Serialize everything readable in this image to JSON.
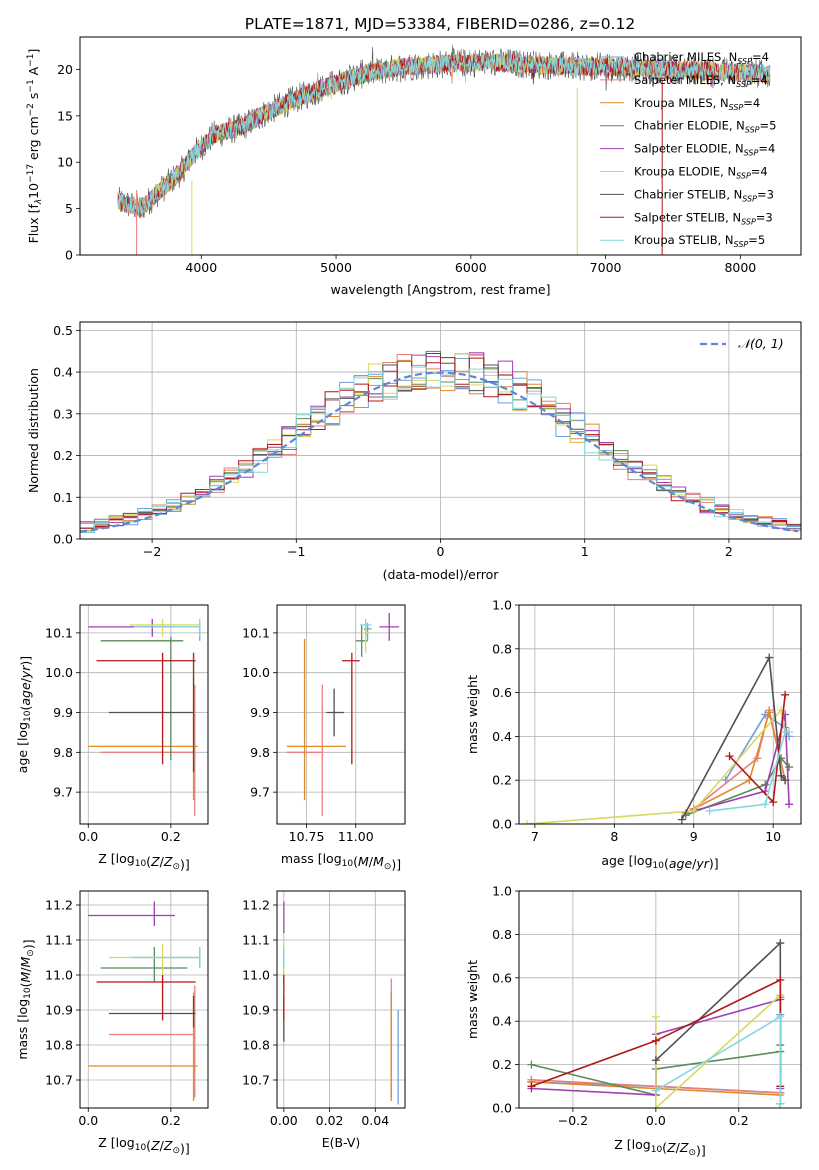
{
  "figure_title": "PLATE=1871, MJD=53384, FIBERID=0286, z=0.12",
  "model_colors": [
    "#6f9fdc",
    "#e87f7f",
    "#e08a2c",
    "#5b8a5b",
    "#a040b0",
    "#d8d860",
    "#505050",
    "#b01818",
    "#80d8e0"
  ],
  "chart_data": [
    {
      "type": "line",
      "panel": "spectrum",
      "title": "PLATE=1871, MJD=53384, FIBERID=0286, z=0.12",
      "xlabel": "wavelength [Angstrom, rest frame]",
      "ylabel_parts": [
        "Flux [f",
        "λ",
        "10",
        "−17",
        " erg cm",
        "−2",
        " s",
        "−1",
        " A",
        "−1",
        "]"
      ],
      "xlim": [
        3100,
        8450
      ],
      "ylim": [
        0,
        23.5
      ],
      "xticks": [
        4000,
        5000,
        6000,
        7000,
        8000
      ],
      "yticks": [
        0,
        5,
        10,
        15,
        20
      ],
      "grid": false,
      "legend_position": "right",
      "spectrum_x_range": [
        3380,
        8220
      ],
      "series": [
        {
          "name": "Chabrier MILES, N",
          "sub": "SSP",
          "eq": "=4"
        },
        {
          "name": "Salpeter MILES, N",
          "sub": "SSP",
          "eq": "=4"
        },
        {
          "name": "Kroupa MILES, N",
          "sub": "SSP",
          "eq": "=4"
        },
        {
          "name": "Chabrier ELODIE, N",
          "sub": "SSP",
          "eq": "=5"
        },
        {
          "name": "Salpeter ELODIE, N",
          "sub": "SSP",
          "eq": "=4"
        },
        {
          "name": "Kroupa ELODIE, N",
          "sub": "SSP",
          "eq": "=4"
        },
        {
          "name": "Chabrier STELIB, N",
          "sub": "SSP",
          "eq": "=3"
        },
        {
          "name": "Salpeter STELIB, N",
          "sub": "SSP",
          "eq": "=3"
        },
        {
          "name": "Kroupa STELIB, N",
          "sub": "SSP",
          "eq": "=5"
        }
      ],
      "continuum_knots": [
        [
          3380,
          5.8
        ],
        [
          3550,
          5.0
        ],
        [
          3700,
          7.0
        ],
        [
          3850,
          9.0
        ],
        [
          3950,
          11.0
        ],
        [
          4100,
          13.0
        ],
        [
          4300,
          13.8
        ],
        [
          4500,
          15.5
        ],
        [
          4700,
          16.8
        ],
        [
          4900,
          18.0
        ],
        [
          5200,
          19.5
        ],
        [
          5500,
          20.3
        ],
        [
          5800,
          20.6
        ],
        [
          6100,
          20.8
        ],
        [
          6500,
          20.5
        ],
        [
          6800,
          20.3
        ],
        [
          7200,
          20.2
        ],
        [
          7500,
          20.0
        ],
        [
          7800,
          19.8
        ],
        [
          8220,
          19.5
        ]
      ]
    },
    {
      "type": "line",
      "panel": "residuals",
      "xlabel": "(data-model)/error",
      "ylabel": "Normed distribution",
      "xlim": [
        -2.5,
        2.5
      ],
      "ylim": [
        0,
        0.52
      ],
      "xticks": [
        -2,
        -1,
        0,
        1,
        2
      ],
      "yticks": [
        0.0,
        0.1,
        0.2,
        0.3,
        0.4,
        0.5
      ],
      "grid": true,
      "legend_position": "top-right",
      "legend": "𝒩(0, 1)",
      "reference_curve": "normal(0,1)",
      "histogram_bin_width": 0.1
    },
    {
      "type": "scatter",
      "panel": "Z-age",
      "xlabel": "Z [log10(Z/Z⊙)]",
      "ylabel": "age  [log10(age/yr)]",
      "xlim": [
        -0.02,
        0.29
      ],
      "ylim": [
        9.62,
        10.17
      ],
      "xticks": [
        0.0,
        0.2
      ],
      "yticks": [
        9.7,
        9.8,
        9.9,
        10.0,
        10.1
      ],
      "grid": true,
      "points": [
        {
          "s": 0,
          "x": 0.27,
          "y": 10.115,
          "xlo": 0.1,
          "xhi": 0.27,
          "ylo": 10.08,
          "yhi": 10.125
        },
        {
          "s": 1,
          "x": 0.258,
          "y": 9.8,
          "xlo": 0.03,
          "xhi": 0.258,
          "ylo": 9.64,
          "yhi": 9.97
        },
        {
          "s": 2,
          "x": 0.255,
          "y": 9.815,
          "xlo": 0.0,
          "xhi": 0.265,
          "ylo": 9.68,
          "yhi": 10.05
        },
        {
          "s": 3,
          "x": 0.2,
          "y": 10.08,
          "xlo": 0.03,
          "xhi": 0.23,
          "ylo": 9.78,
          "yhi": 10.09
        },
        {
          "s": 4,
          "x": 0.155,
          "y": 10.115,
          "xlo": 0.0,
          "xhi": 0.205,
          "ylo": 10.09,
          "yhi": 10.135
        },
        {
          "s": 5,
          "x": 0.18,
          "y": 10.12,
          "xlo": 0.1,
          "xhi": 0.27,
          "ylo": 10.09,
          "yhi": 10.135
        },
        {
          "s": 6,
          "x": 0.255,
          "y": 9.9,
          "xlo": 0.05,
          "xhi": 0.255,
          "ylo": 9.75,
          "yhi": 10.05
        },
        {
          "s": 7,
          "x": 0.18,
          "y": 10.03,
          "xlo": 0.02,
          "xhi": 0.26,
          "ylo": 9.77,
          "yhi": 10.05
        },
        {
          "s": 8,
          "x": 0.27,
          "y": 10.115,
          "xlo": 0.11,
          "xhi": 0.27,
          "ylo": 10.09,
          "yhi": 10.135
        }
      ]
    },
    {
      "type": "scatter",
      "panel": "mass-age",
      "xlabel": "mass [log10(M/M⊙)]",
      "ylabel": "",
      "xlim": [
        10.6,
        11.25
      ],
      "ylim": [
        9.62,
        10.17
      ],
      "xticks": [
        10.75,
        11.0
      ],
      "yticks": [
        9.7,
        9.8,
        9.9,
        10.0,
        10.1
      ],
      "grid": true,
      "points": [
        {
          "s": 0,
          "x": 11.06,
          "y": 10.11,
          "xlo": 11.04,
          "xhi": 11.08,
          "ylo": 10.08,
          "yhi": 10.125
        },
        {
          "s": 1,
          "x": 10.83,
          "y": 9.8,
          "xlo": 10.65,
          "xhi": 10.83,
          "ylo": 9.64,
          "yhi": 9.97
        },
        {
          "s": 2,
          "x": 10.74,
          "y": 9.815,
          "xlo": 10.65,
          "xhi": 10.95,
          "ylo": 9.68,
          "yhi": 10.085
        },
        {
          "s": 3,
          "x": 11.03,
          "y": 10.08,
          "xlo": 11.0,
          "xhi": 11.06,
          "ylo": 10.04,
          "yhi": 10.12
        },
        {
          "s": 4,
          "x": 11.17,
          "y": 10.115,
          "xlo": 11.12,
          "xhi": 11.22,
          "ylo": 10.08,
          "yhi": 10.15
        },
        {
          "s": 5,
          "x": 11.05,
          "y": 10.1,
          "xlo": 11.03,
          "xhi": 11.08,
          "ylo": 10.05,
          "yhi": 10.125
        },
        {
          "s": 6,
          "x": 10.89,
          "y": 9.9,
          "xlo": 10.85,
          "xhi": 10.94,
          "ylo": 9.84,
          "yhi": 9.96
        },
        {
          "s": 7,
          "x": 10.98,
          "y": 10.03,
          "xlo": 10.93,
          "xhi": 11.02,
          "ylo": 9.77,
          "yhi": 10.05
        },
        {
          "s": 8,
          "x": 11.05,
          "y": 10.12,
          "xlo": 11.02,
          "xhi": 11.08,
          "ylo": 10.09,
          "yhi": 10.135
        }
      ]
    },
    {
      "type": "line",
      "panel": "age-massweight",
      "xlabel": "age  [log10(age/yr)]",
      "ylabel": "mass weight",
      "xlim": [
        6.8,
        10.35
      ],
      "ylim": [
        0,
        1.0
      ],
      "xticks": [
        7,
        8,
        9,
        10
      ],
      "yticks": [
        0.0,
        0.2,
        0.4,
        0.6,
        0.8,
        1.0
      ],
      "grid": true,
      "series": [
        {
          "s": 0,
          "points": [
            [
              9.4,
              0.2
            ],
            [
              9.9,
              0.5
            ],
            [
              10.15,
              0.44
            ],
            [
              10.2,
              0.4
            ]
          ]
        },
        {
          "s": 1,
          "points": [
            [
              9.0,
              0.07
            ],
            [
              9.8,
              0.3
            ],
            [
              9.95,
              0.52
            ],
            [
              10.15,
              0.2
            ]
          ]
        },
        {
          "s": 2,
          "points": [
            [
              8.9,
              0.05
            ],
            [
              9.7,
              0.2
            ],
            [
              9.95,
              0.51
            ],
            [
              10.15,
              0.2
            ]
          ]
        },
        {
          "s": 3,
          "points": [
            [
              8.9,
              0.04
            ],
            [
              9.9,
              0.18
            ],
            [
              10.1,
              0.3
            ],
            [
              10.2,
              0.26
            ]
          ]
        },
        {
          "s": 4,
          "points": [
            [
              9.0,
              0.06
            ],
            [
              9.9,
              0.15
            ],
            [
              10.15,
              0.5
            ],
            [
              10.2,
              0.09
            ]
          ]
        },
        {
          "s": 5,
          "points": [
            [
              6.9,
              0.0
            ],
            [
              9.0,
              0.06
            ],
            [
              10.1,
              0.52
            ],
            [
              10.15,
              0.42
            ]
          ]
        },
        {
          "s": 6,
          "points": [
            [
              8.85,
              0.02
            ],
            [
              9.95,
              0.76
            ],
            [
              10.1,
              0.22
            ],
            [
              10.15,
              0.2
            ]
          ]
        },
        {
          "s": 7,
          "points": [
            [
              9.45,
              0.31
            ],
            [
              10.0,
              0.1
            ],
            [
              10.15,
              0.59
            ]
          ]
        },
        {
          "s": 8,
          "points": [
            [
              9.2,
              0.06
            ],
            [
              9.9,
              0.09
            ],
            [
              10.15,
              0.42
            ],
            [
              10.2,
              0.42
            ]
          ]
        }
      ]
    },
    {
      "type": "scatter",
      "panel": "Z-mass",
      "xlabel": "Z [log10(Z/Z⊙)]",
      "ylabel": "mass [log10(M/M⊙)]",
      "xlim": [
        -0.02,
        0.29
      ],
      "ylim": [
        10.62,
        11.24
      ],
      "xticks": [
        0.0,
        0.2
      ],
      "yticks": [
        10.7,
        10.8,
        10.9,
        11.0,
        11.1,
        11.2
      ],
      "grid": true,
      "points": [
        {
          "s": 0,
          "x": 0.27,
          "y": 11.05,
          "xlo": 0.1,
          "xhi": 0.27,
          "ylo": 11.02,
          "yhi": 11.08
        },
        {
          "s": 1,
          "x": 0.258,
          "y": 10.83,
          "xlo": 0.05,
          "xhi": 0.258,
          "ylo": 10.65,
          "yhi": 10.97
        },
        {
          "s": 2,
          "x": 0.255,
          "y": 10.74,
          "xlo": 0.0,
          "xhi": 0.265,
          "ylo": 10.64,
          "yhi": 10.95
        },
        {
          "s": 3,
          "x": 0.16,
          "y": 11.02,
          "xlo": 0.03,
          "xhi": 0.24,
          "ylo": 10.98,
          "yhi": 11.08
        },
        {
          "s": 4,
          "x": 0.16,
          "y": 11.17,
          "xlo": 0.0,
          "xhi": 0.21,
          "ylo": 11.14,
          "yhi": 11.21
        },
        {
          "s": 5,
          "x": 0.18,
          "y": 11.05,
          "xlo": 0.05,
          "xhi": 0.27,
          "ylo": 11.0,
          "yhi": 11.09
        },
        {
          "s": 6,
          "x": 0.255,
          "y": 10.89,
          "xlo": 0.05,
          "xhi": 0.26,
          "ylo": 10.85,
          "yhi": 10.94
        },
        {
          "s": 7,
          "x": 0.18,
          "y": 10.98,
          "xlo": 0.02,
          "xhi": 0.26,
          "ylo": 10.87,
          "yhi": 11.0
        },
        {
          "s": 8,
          "x": 0.27,
          "y": 11.05,
          "xlo": 0.11,
          "xhi": 0.27,
          "ylo": 11.02,
          "yhi": 11.08
        }
      ]
    },
    {
      "type": "scatter",
      "panel": "EBV-mass",
      "xlabel": "E(B-V)",
      "ylabel": "",
      "xlim": [
        -0.003,
        0.053
      ],
      "ylim": [
        10.62,
        11.24
      ],
      "xticks": [
        0.0,
        0.02,
        0.04
      ],
      "yticks": [
        10.7,
        10.8,
        10.9,
        11.0,
        11.1,
        11.2
      ],
      "grid": true,
      "points": [
        {
          "s": 0,
          "x": 0.05,
          "y": 10.8,
          "xlo": 0.05,
          "xhi": 0.05,
          "ylo": 10.63,
          "yhi": 10.9
        },
        {
          "s": 1,
          "x": 0.047,
          "y": 10.85,
          "xlo": 0.047,
          "xhi": 0.047,
          "ylo": 10.65,
          "yhi": 10.99
        },
        {
          "s": 2,
          "x": 0.047,
          "y": 10.8,
          "xlo": 0.047,
          "xhi": 0.047,
          "ylo": 10.64,
          "yhi": 10.95
        },
        {
          "s": 3,
          "x": 0.0,
          "y": 11.0,
          "xlo": 0.0,
          "xhi": 0.0,
          "ylo": 10.97,
          "yhi": 11.08
        },
        {
          "s": 4,
          "x": 0.0,
          "y": 11.17,
          "xlo": 0.0,
          "xhi": 0.0,
          "ylo": 11.12,
          "yhi": 11.21
        },
        {
          "s": 5,
          "x": 0.0,
          "y": 11.05,
          "xlo": 0.0,
          "xhi": 0.0,
          "ylo": 11.0,
          "yhi": 11.09
        },
        {
          "s": 6,
          "x": 0.0,
          "y": 10.89,
          "xlo": 0.0,
          "xhi": 0.0,
          "ylo": 10.81,
          "yhi": 10.94
        },
        {
          "s": 7,
          "x": 0.0,
          "y": 10.95,
          "xlo": 0.0,
          "xhi": 0.0,
          "ylo": 10.87,
          "yhi": 11.0
        },
        {
          "s": 8,
          "x": 0.0,
          "y": 11.05,
          "xlo": 0.0,
          "xhi": 0.0,
          "ylo": 11.02,
          "yhi": 11.08
        }
      ]
    },
    {
      "type": "line",
      "panel": "Z-massweight",
      "xlabel": "Z [log10(Z/Z⊙)]",
      "ylabel": "mass weight",
      "xlim": [
        -0.33,
        0.35
      ],
      "ylim": [
        0,
        1.0
      ],
      "xticks": [
        -0.2,
        0.0,
        0.2
      ],
      "yticks": [
        0.0,
        0.2,
        0.4,
        0.6,
        0.8,
        1.0
      ],
      "grid": true,
      "series": [
        {
          "s": 0,
          "points": [
            [
              -0.3,
              0.12
            ],
            [
              0.0,
              0.1
            ],
            [
              0.3,
              0.07
            ],
            [
              0.3,
              0.43
            ]
          ]
        },
        {
          "s": 1,
          "points": [
            [
              -0.3,
              0.13
            ],
            [
              0.0,
              0.1
            ],
            [
              0.3,
              0.07
            ],
            [
              0.3,
              0.52
            ]
          ]
        },
        {
          "s": 2,
          "points": [
            [
              -0.3,
              0.12
            ],
            [
              0.0,
              0.09
            ],
            [
              0.3,
              0.06
            ],
            [
              0.3,
              0.51
            ]
          ]
        },
        {
          "s": 3,
          "points": [
            [
              -0.3,
              0.2
            ],
            [
              0.0,
              0.06
            ],
            [
              0.0,
              0.18
            ],
            [
              0.3,
              0.26
            ],
            [
              0.3,
              0.29
            ]
          ]
        },
        {
          "s": 4,
          "points": [
            [
              -0.3,
              0.09
            ],
            [
              0.0,
              0.06
            ],
            [
              0.0,
              0.34
            ],
            [
              0.3,
              0.5
            ],
            [
              0.3,
              0.09
            ]
          ]
        },
        {
          "s": 5,
          "points": [
            [
              0.0,
              0.42
            ],
            [
              0.0,
              0.0
            ],
            [
              0.3,
              0.52
            ]
          ]
        },
        {
          "s": 6,
          "points": [
            [
              0.0,
              0.22
            ],
            [
              0.3,
              0.76
            ],
            [
              0.3,
              0.02
            ]
          ]
        },
        {
          "s": 7,
          "points": [
            [
              -0.3,
              0.1
            ],
            [
              0.0,
              0.31
            ],
            [
              0.3,
              0.59
            ],
            [
              0.3,
              0.1
            ]
          ]
        },
        {
          "s": 8,
          "points": [
            [
              0.0,
              0.08
            ],
            [
              0.3,
              0.42
            ],
            [
              0.3,
              0.02
            ]
          ]
        }
      ]
    }
  ]
}
